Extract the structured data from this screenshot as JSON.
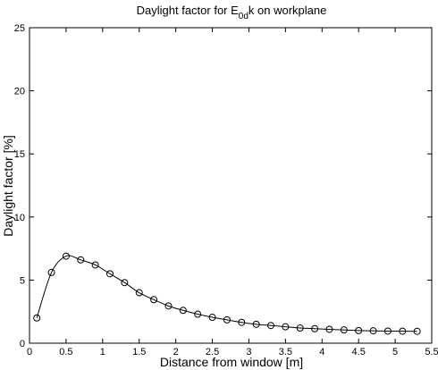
{
  "chart_data": {
    "type": "line",
    "title": "Daylight factor for E0dk on workplane",
    "title_parts": {
      "prefix": "Daylight factor for E",
      "subscript": "0d",
      "suffix": "k on workplane"
    },
    "xlabel": "Distance from window [m]",
    "ylabel": "Daylight factor [%]",
    "xlim": [
      0,
      5.5
    ],
    "ylim": [
      0,
      25
    ],
    "xticks": [
      0,
      0.5,
      1,
      1.5,
      2,
      2.5,
      3,
      3.5,
      4,
      4.5,
      5,
      5.5
    ],
    "xtick_labels": [
      "0",
      "0.5",
      "1",
      "1.5",
      "2",
      "2.5",
      "3",
      "3.5",
      "4",
      "4.5",
      "5",
      "5.5"
    ],
    "yticks": [
      0,
      5,
      10,
      15,
      20,
      25
    ],
    "ytick_labels": [
      "0",
      "5",
      "10",
      "15",
      "20",
      "25"
    ],
    "grid": false,
    "marker": "circle",
    "series": [
      {
        "x": [
          0.1,
          0.3,
          0.5,
          0.7,
          0.9,
          1.1,
          1.3,
          1.5,
          1.7,
          1.9,
          2.1,
          2.3,
          2.5,
          2.7,
          2.9,
          3.1,
          3.3,
          3.5,
          3.7,
          3.9,
          4.1,
          4.3,
          4.5,
          4.7,
          4.9,
          5.1,
          5.3
        ],
        "y": [
          2.0,
          5.6,
          6.9,
          6.6,
          6.2,
          5.5,
          4.8,
          4.0,
          3.45,
          2.95,
          2.6,
          2.3,
          2.05,
          1.85,
          1.65,
          1.5,
          1.4,
          1.3,
          1.2,
          1.15,
          1.1,
          1.05,
          1.0,
          0.98,
          0.96,
          0.95,
          0.94
        ]
      }
    ]
  }
}
